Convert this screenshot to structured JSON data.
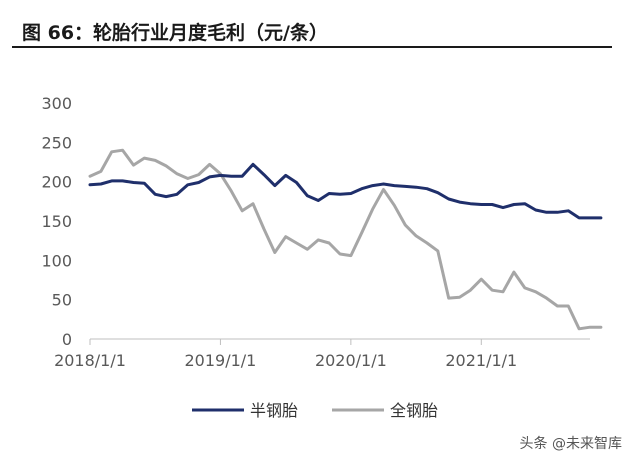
{
  "header": {
    "title": "图 66：轮胎行业月度毛利（元/条）"
  },
  "watermark": "头条 @未来智库",
  "chart_data": {
    "type": "line",
    "title": "图 66：轮胎行业月度毛利（元/条）",
    "xlabel": "",
    "ylabel": "",
    "ylim": [
      0,
      300
    ],
    "yticks": [
      0,
      50,
      100,
      150,
      200,
      250,
      300
    ],
    "xlim": [
      "2018-01-01",
      "2021-12-01"
    ],
    "xticks": [
      "2018/1/1",
      "2019/1/1",
      "2020/1/1",
      "2021/1/1"
    ],
    "legend_position": "bottom",
    "grid": false,
    "x": [
      "2018-01",
      "2018-02",
      "2018-03",
      "2018-04",
      "2018-05",
      "2018-06",
      "2018-07",
      "2018-08",
      "2018-09",
      "2018-10",
      "2018-11",
      "2018-12",
      "2019-01",
      "2019-02",
      "2019-03",
      "2019-04",
      "2019-05",
      "2019-06",
      "2019-07",
      "2019-08",
      "2019-09",
      "2019-10",
      "2019-11",
      "2019-12",
      "2020-01",
      "2020-02",
      "2020-03",
      "2020-04",
      "2020-05",
      "2020-06",
      "2020-07",
      "2020-08",
      "2020-09",
      "2020-10",
      "2020-11",
      "2020-12",
      "2021-01",
      "2021-02",
      "2021-03",
      "2021-04",
      "2021-05",
      "2021-06",
      "2021-07",
      "2021-08",
      "2021-09",
      "2021-10",
      "2021-11",
      "2021-12"
    ],
    "series": [
      {
        "name": "半钢胎",
        "color": "#1f2f6b",
        "values": [
          196,
          197,
          201,
          201,
          199,
          198,
          184,
          181,
          184,
          196,
          199,
          206,
          208,
          207,
          207,
          222,
          209,
          195,
          208,
          199,
          182,
          176,
          185,
          184,
          185,
          191,
          195,
          197,
          195,
          194,
          193,
          191,
          186,
          178,
          174,
          172,
          171,
          171,
          167,
          171,
          172,
          164,
          161,
          161,
          163,
          154,
          154,
          154
        ]
      },
      {
        "name": "全钢胎",
        "color": "#a6a6a6",
        "values": [
          207,
          213,
          238,
          240,
          221,
          230,
          227,
          220,
          210,
          204,
          209,
          222,
          210,
          188,
          163,
          172,
          140,
          110,
          130,
          122,
          114,
          126,
          122,
          108,
          106,
          135,
          165,
          190,
          170,
          145,
          131,
          122,
          112,
          52,
          53,
          62,
          76,
          62,
          60,
          85,
          65,
          60,
          52,
          42,
          42,
          13,
          15,
          15
        ]
      }
    ]
  }
}
